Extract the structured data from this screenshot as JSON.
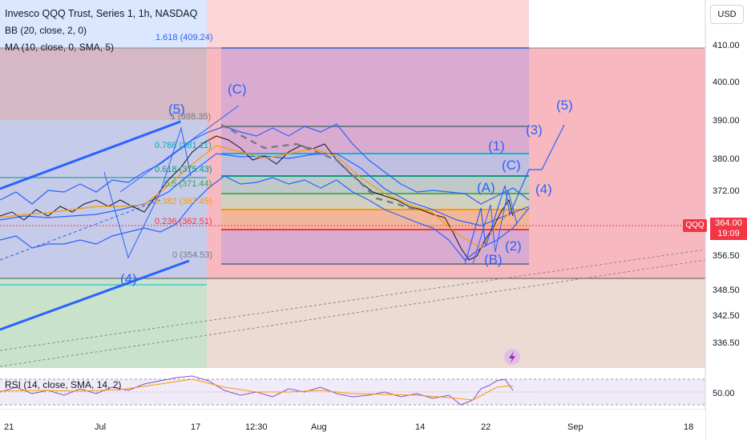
{
  "header": {
    "title": "Invesco QQQ Trust, Series 1, 1h, NASDAQ",
    "indicator_bb": "BB (20, close, 2, 0)",
    "indicator_ma": "MA (10, close, 0, SMA, 5)",
    "rsi_label": "RSI (14, close, SMA, 14, 2)"
  },
  "currency_button": "USD",
  "price_tag": {
    "symbol": "QQQ",
    "price": "364.00",
    "countdown": "19:09"
  },
  "price_axis": {
    "ticks": [
      "410.00",
      "400.00",
      "390.00",
      "380.00",
      "372.00",
      "356.50",
      "348.50",
      "342.50",
      "336.50"
    ],
    "rsi_tick": "50.00"
  },
  "time_axis": {
    "ticks": [
      "21",
      "Jul",
      "17",
      "12:30",
      "Aug",
      "14",
      "22",
      "Sep",
      "18"
    ]
  },
  "fib_left": [
    "1.618 (409.24)",
    "1 (388.35)",
    "0.786 (381.11)",
    "0.618 (375.43)",
    "0.5 (371.44)",
    "0.382 (367.45)",
    "0.236 (362.51)",
    "0 (354.53)"
  ],
  "waves": [
    "(5)",
    "(C)",
    "(4)",
    "(1)",
    "(3)",
    "(5)",
    "(C)",
    "(A)",
    "(4)",
    "(2)",
    "(B)"
  ],
  "lightning_icon": "lightning-icon",
  "colors": {
    "accent_red": "#f23645",
    "wave_blue": "#2962ff",
    "fib_green": "#089981",
    "fib_teal": "#00bcd4",
    "fib_orange": "#ff9800"
  }
}
